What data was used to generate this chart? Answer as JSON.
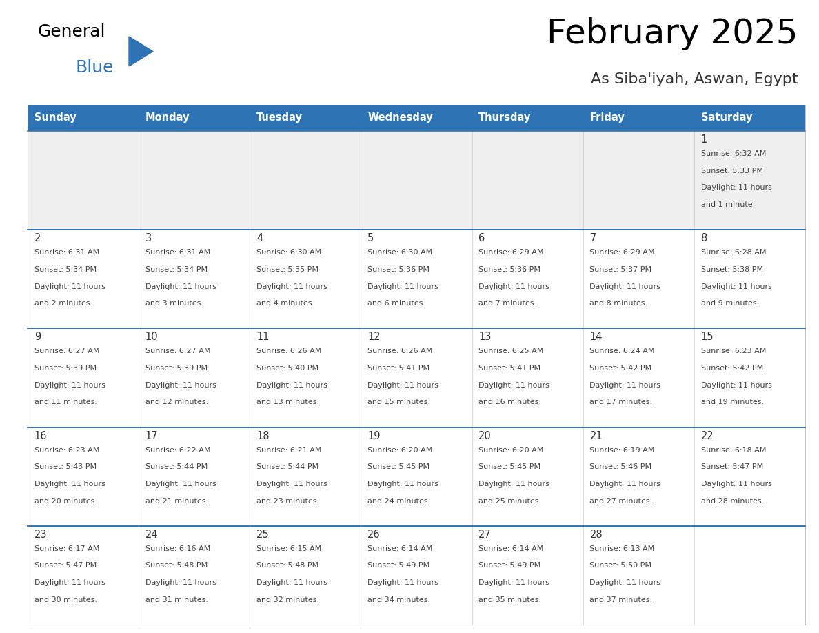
{
  "title": "February 2025",
  "subtitle": "As Siba'iyah, Aswan, Egypt",
  "days_of_week": [
    "Sunday",
    "Monday",
    "Tuesday",
    "Wednesday",
    "Thursday",
    "Friday",
    "Saturday"
  ],
  "header_bg": "#2E74B5",
  "header_text": "#FFFFFF",
  "cell_bg_light": "#EFEFEF",
  "cell_bg_white": "#FFFFFF",
  "divider_color": "#2E74B5",
  "day_num_color": "#333333",
  "info_text_color": "#444444",
  "title_color": "#000000",
  "subtitle_color": "#333333",
  "calendar": [
    [
      null,
      null,
      null,
      null,
      null,
      null,
      {
        "day": 1,
        "sunrise": "6:32 AM",
        "sunset": "5:33 PM",
        "daylight": "11 hours",
        "daylight2": "and 1 minute."
      }
    ],
    [
      {
        "day": 2,
        "sunrise": "6:31 AM",
        "sunset": "5:34 PM",
        "daylight": "11 hours",
        "daylight2": "and 2 minutes."
      },
      {
        "day": 3,
        "sunrise": "6:31 AM",
        "sunset": "5:34 PM",
        "daylight": "11 hours",
        "daylight2": "and 3 minutes."
      },
      {
        "day": 4,
        "sunrise": "6:30 AM",
        "sunset": "5:35 PM",
        "daylight": "11 hours",
        "daylight2": "and 4 minutes."
      },
      {
        "day": 5,
        "sunrise": "6:30 AM",
        "sunset": "5:36 PM",
        "daylight": "11 hours",
        "daylight2": "and 6 minutes."
      },
      {
        "day": 6,
        "sunrise": "6:29 AM",
        "sunset": "5:36 PM",
        "daylight": "11 hours",
        "daylight2": "and 7 minutes."
      },
      {
        "day": 7,
        "sunrise": "6:29 AM",
        "sunset": "5:37 PM",
        "daylight": "11 hours",
        "daylight2": "and 8 minutes."
      },
      {
        "day": 8,
        "sunrise": "6:28 AM",
        "sunset": "5:38 PM",
        "daylight": "11 hours",
        "daylight2": "and 9 minutes."
      }
    ],
    [
      {
        "day": 9,
        "sunrise": "6:27 AM",
        "sunset": "5:39 PM",
        "daylight": "11 hours",
        "daylight2": "and 11 minutes."
      },
      {
        "day": 10,
        "sunrise": "6:27 AM",
        "sunset": "5:39 PM",
        "daylight": "11 hours",
        "daylight2": "and 12 minutes."
      },
      {
        "day": 11,
        "sunrise": "6:26 AM",
        "sunset": "5:40 PM",
        "daylight": "11 hours",
        "daylight2": "and 13 minutes."
      },
      {
        "day": 12,
        "sunrise": "6:26 AM",
        "sunset": "5:41 PM",
        "daylight": "11 hours",
        "daylight2": "and 15 minutes."
      },
      {
        "day": 13,
        "sunrise": "6:25 AM",
        "sunset": "5:41 PM",
        "daylight": "11 hours",
        "daylight2": "and 16 minutes."
      },
      {
        "day": 14,
        "sunrise": "6:24 AM",
        "sunset": "5:42 PM",
        "daylight": "11 hours",
        "daylight2": "and 17 minutes."
      },
      {
        "day": 15,
        "sunrise": "6:23 AM",
        "sunset": "5:42 PM",
        "daylight": "11 hours",
        "daylight2": "and 19 minutes."
      }
    ],
    [
      {
        "day": 16,
        "sunrise": "6:23 AM",
        "sunset": "5:43 PM",
        "daylight": "11 hours",
        "daylight2": "and 20 minutes."
      },
      {
        "day": 17,
        "sunrise": "6:22 AM",
        "sunset": "5:44 PM",
        "daylight": "11 hours",
        "daylight2": "and 21 minutes."
      },
      {
        "day": 18,
        "sunrise": "6:21 AM",
        "sunset": "5:44 PM",
        "daylight": "11 hours",
        "daylight2": "and 23 minutes."
      },
      {
        "day": 19,
        "sunrise": "6:20 AM",
        "sunset": "5:45 PM",
        "daylight": "11 hours",
        "daylight2": "and 24 minutes."
      },
      {
        "day": 20,
        "sunrise": "6:20 AM",
        "sunset": "5:45 PM",
        "daylight": "11 hours",
        "daylight2": "and 25 minutes."
      },
      {
        "day": 21,
        "sunrise": "6:19 AM",
        "sunset": "5:46 PM",
        "daylight": "11 hours",
        "daylight2": "and 27 minutes."
      },
      {
        "day": 22,
        "sunrise": "6:18 AM",
        "sunset": "5:47 PM",
        "daylight": "11 hours",
        "daylight2": "and 28 minutes."
      }
    ],
    [
      {
        "day": 23,
        "sunrise": "6:17 AM",
        "sunset": "5:47 PM",
        "daylight": "11 hours",
        "daylight2": "and 30 minutes."
      },
      {
        "day": 24,
        "sunrise": "6:16 AM",
        "sunset": "5:48 PM",
        "daylight": "11 hours",
        "daylight2": "and 31 minutes."
      },
      {
        "day": 25,
        "sunrise": "6:15 AM",
        "sunset": "5:48 PM",
        "daylight": "11 hours",
        "daylight2": "and 32 minutes."
      },
      {
        "day": 26,
        "sunrise": "6:14 AM",
        "sunset": "5:49 PM",
        "daylight": "11 hours",
        "daylight2": "and 34 minutes."
      },
      {
        "day": 27,
        "sunrise": "6:14 AM",
        "sunset": "5:49 PM",
        "daylight": "11 hours",
        "daylight2": "and 35 minutes."
      },
      {
        "day": 28,
        "sunrise": "6:13 AM",
        "sunset": "5:50 PM",
        "daylight": "11 hours",
        "daylight2": "and 37 minutes."
      },
      null
    ]
  ]
}
